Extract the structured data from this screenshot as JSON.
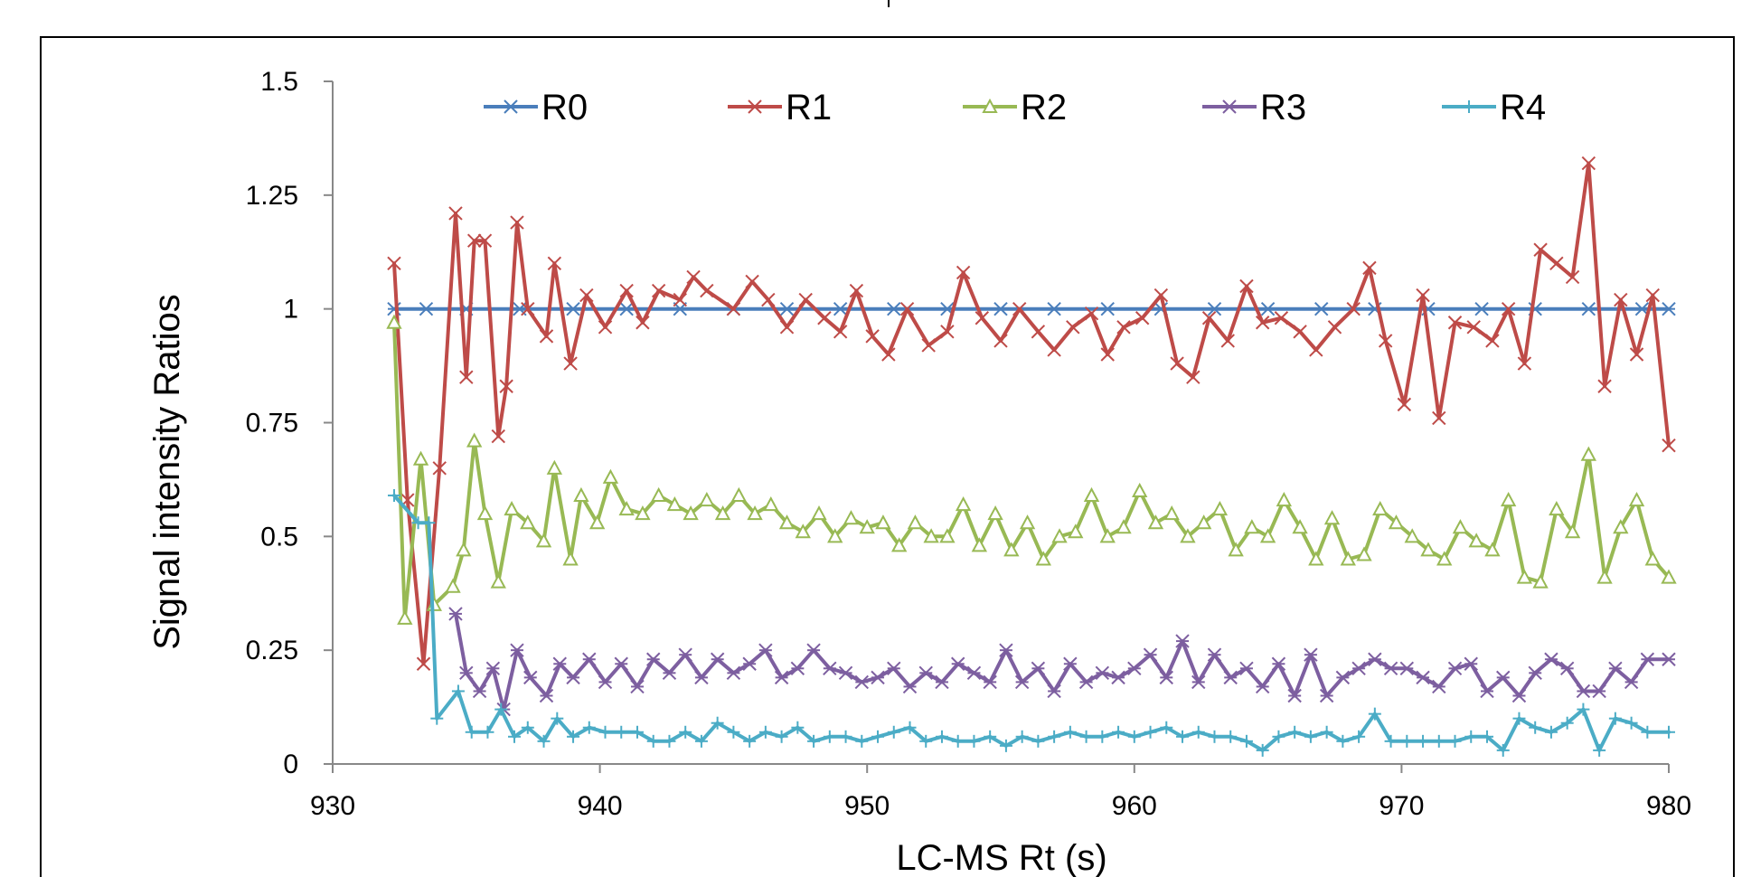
{
  "chart_data": {
    "type": "line",
    "title": "",
    "xlabel": "LC-MS Rt (s)",
    "ylabel": "Signal intensity Ratios",
    "xlim": [
      930,
      980
    ],
    "ylim": [
      0,
      1.5
    ],
    "x_ticks": [
      "930",
      "940",
      "950",
      "960",
      "970",
      "980"
    ],
    "y_ticks": [
      "0",
      "0.25",
      "0.5",
      "0.75",
      "1",
      "1.25",
      "1.5"
    ],
    "grid": false,
    "legend_position": "top",
    "series": [
      {
        "name": "R0",
        "color": "#4a7ebb",
        "marker": "asterisk",
        "x": [
          932.3,
          933.5,
          935.0,
          937.0,
          939.0,
          941.0,
          943.0,
          945.0,
          947.0,
          949.0,
          951.0,
          953.0,
          955.0,
          957.0,
          959.0,
          961.0,
          963.0,
          965.0,
          967.0,
          969.0,
          971.0,
          973.0,
          975.0,
          977.0,
          979.0,
          980.0
        ],
        "y": [
          1.0,
          1.0,
          1.0,
          1.0,
          1.0,
          1.0,
          1.0,
          1.0,
          1.0,
          1.0,
          1.0,
          1.0,
          1.0,
          1.0,
          1.0,
          1.0,
          1.0,
          1.0,
          1.0,
          1.0,
          1.0,
          1.0,
          1.0,
          1.0,
          1.0,
          1.0
        ]
      },
      {
        "name": "R1",
        "color": "#be4b48",
        "marker": "x",
        "x": [
          932.3,
          932.8,
          933.4,
          934.0,
          934.6,
          935.0,
          935.3,
          935.7,
          936.2,
          936.5,
          936.9,
          937.3,
          938.0,
          938.3,
          938.9,
          939.5,
          940.2,
          941.0,
          941.6,
          942.2,
          943.0,
          943.5,
          944.0,
          945.0,
          945.7,
          946.3,
          947.0,
          947.7,
          948.4,
          949.0,
          949.6,
          950.2,
          950.8,
          951.5,
          952.3,
          953.0,
          953.6,
          954.3,
          955.0,
          955.7,
          956.4,
          957.0,
          957.7,
          958.4,
          959.0,
          959.6,
          960.3,
          961.0,
          961.6,
          962.2,
          962.8,
          963.5,
          964.2,
          964.8,
          965.5,
          966.2,
          966.8,
          967.5,
          968.2,
          968.8,
          969.4,
          970.1,
          970.8,
          971.4,
          972.0,
          972.7,
          973.4,
          974.0,
          974.6,
          975.2,
          975.8,
          976.4,
          977.0,
          977.6,
          978.2,
          978.8,
          979.4,
          980.0
        ],
        "y": [
          1.1,
          0.58,
          0.22,
          0.65,
          1.21,
          0.85,
          1.15,
          1.15,
          0.72,
          0.83,
          1.19,
          1.0,
          0.94,
          1.1,
          0.88,
          1.03,
          0.96,
          1.04,
          0.97,
          1.04,
          1.02,
          1.07,
          1.04,
          1.0,
          1.06,
          1.02,
          0.96,
          1.02,
          0.98,
          0.95,
          1.04,
          0.94,
          0.9,
          1.0,
          0.92,
          0.95,
          1.08,
          0.98,
          0.93,
          1.0,
          0.95,
          0.91,
          0.96,
          0.99,
          0.9,
          0.96,
          0.98,
          1.03,
          0.88,
          0.85,
          0.98,
          0.93,
          1.05,
          0.97,
          0.98,
          0.95,
          0.91,
          0.96,
          1.0,
          1.09,
          0.93,
          0.79,
          1.03,
          0.76,
          0.97,
          0.96,
          0.93,
          1.0,
          0.88,
          1.13,
          1.1,
          1.07,
          1.32,
          0.83,
          1.02,
          0.9,
          1.03,
          0.7
        ]
      },
      {
        "name": "R2",
        "color": "#98b954",
        "marker": "triangle",
        "x": [
          932.3,
          932.7,
          933.3,
          933.8,
          934.5,
          934.9,
          935.3,
          935.7,
          936.2,
          936.7,
          937.3,
          937.9,
          938.3,
          938.9,
          939.3,
          939.9,
          940.4,
          941.0,
          941.6,
          942.2,
          942.8,
          943.4,
          944.0,
          944.6,
          945.2,
          945.8,
          946.4,
          947.0,
          947.6,
          948.2,
          948.8,
          949.4,
          950.0,
          950.6,
          951.2,
          951.8,
          952.4,
          953.0,
          953.6,
          954.2,
          954.8,
          955.4,
          956.0,
          956.6,
          957.2,
          957.8,
          958.4,
          959.0,
          959.6,
          960.2,
          960.8,
          961.4,
          962.0,
          962.6,
          963.2,
          963.8,
          964.4,
          965.0,
          965.6,
          966.2,
          966.8,
          967.4,
          968.0,
          968.6,
          969.2,
          969.8,
          970.4,
          971.0,
          971.6,
          972.2,
          972.8,
          973.4,
          974.0,
          974.6,
          975.2,
          975.8,
          976.4,
          977.0,
          977.6,
          978.2,
          978.8,
          979.4,
          980.0
        ],
        "y": [
          0.97,
          0.32,
          0.67,
          0.35,
          0.39,
          0.47,
          0.71,
          0.55,
          0.4,
          0.56,
          0.53,
          0.49,
          0.65,
          0.45,
          0.59,
          0.53,
          0.63,
          0.56,
          0.55,
          0.59,
          0.57,
          0.55,
          0.58,
          0.55,
          0.59,
          0.55,
          0.57,
          0.53,
          0.51,
          0.55,
          0.5,
          0.54,
          0.52,
          0.53,
          0.48,
          0.53,
          0.5,
          0.5,
          0.57,
          0.48,
          0.55,
          0.47,
          0.53,
          0.45,
          0.5,
          0.51,
          0.59,
          0.5,
          0.52,
          0.6,
          0.53,
          0.55,
          0.5,
          0.53,
          0.56,
          0.47,
          0.52,
          0.5,
          0.58,
          0.52,
          0.45,
          0.54,
          0.45,
          0.46,
          0.56,
          0.53,
          0.5,
          0.47,
          0.45,
          0.52,
          0.49,
          0.47,
          0.58,
          0.41,
          0.4,
          0.56,
          0.51,
          0.68,
          0.41,
          0.52,
          0.58,
          0.45,
          0.41
        ]
      },
      {
        "name": "R3",
        "color": "#7d5fa0",
        "marker": "asterisk",
        "x": [
          934.6,
          935.0,
          935.5,
          936.0,
          936.4,
          936.9,
          937.4,
          938.0,
          938.5,
          939.0,
          939.6,
          940.2,
          940.8,
          941.4,
          942.0,
          942.6,
          943.2,
          943.8,
          944.4,
          945.0,
          945.6,
          946.2,
          946.8,
          947.4,
          948.0,
          948.6,
          949.2,
          949.8,
          950.4,
          951.0,
          951.6,
          952.2,
          952.8,
          953.4,
          954.0,
          954.6,
          955.2,
          955.8,
          956.4,
          957.0,
          957.6,
          958.2,
          958.8,
          959.4,
          960.0,
          960.6,
          961.2,
          961.8,
          962.4,
          963.0,
          963.6,
          964.2,
          964.8,
          965.4,
          966.0,
          966.6,
          967.2,
          967.8,
          968.4,
          969.0,
          969.6,
          970.2,
          970.8,
          971.4,
          972.0,
          972.6,
          973.2,
          973.8,
          974.4,
          975.0,
          975.6,
          976.2,
          976.8,
          977.4,
          978.0,
          978.6,
          979.2,
          980.0
        ],
        "y": [
          0.33,
          0.2,
          0.16,
          0.21,
          0.12,
          0.25,
          0.19,
          0.15,
          0.22,
          0.19,
          0.23,
          0.18,
          0.22,
          0.17,
          0.23,
          0.2,
          0.24,
          0.19,
          0.23,
          0.2,
          0.22,
          0.25,
          0.19,
          0.21,
          0.25,
          0.21,
          0.2,
          0.18,
          0.19,
          0.21,
          0.17,
          0.2,
          0.18,
          0.22,
          0.2,
          0.18,
          0.25,
          0.18,
          0.21,
          0.16,
          0.22,
          0.18,
          0.2,
          0.19,
          0.21,
          0.24,
          0.19,
          0.27,
          0.18,
          0.24,
          0.19,
          0.21,
          0.17,
          0.22,
          0.15,
          0.24,
          0.15,
          0.19,
          0.21,
          0.23,
          0.21,
          0.21,
          0.19,
          0.17,
          0.21,
          0.22,
          0.16,
          0.19,
          0.15,
          0.2,
          0.23,
          0.21,
          0.16,
          0.16,
          0.21,
          0.18,
          0.23,
          0.23
        ]
      },
      {
        "name": "R4",
        "color": "#4bacc6",
        "marker": "plus",
        "x": [
          932.3,
          933.2,
          933.6,
          933.9,
          934.7,
          935.2,
          935.8,
          936.3,
          936.8,
          937.3,
          937.9,
          938.4,
          939.0,
          939.6,
          940.2,
          940.8,
          941.4,
          942.0,
          942.6,
          943.2,
          943.8,
          944.4,
          945.0,
          945.6,
          946.2,
          946.8,
          947.4,
          948.0,
          948.6,
          949.2,
          949.8,
          950.4,
          951.0,
          951.6,
          952.2,
          952.8,
          953.4,
          954.0,
          954.6,
          955.2,
          955.8,
          956.4,
          957.0,
          957.6,
          958.2,
          958.8,
          959.4,
          960.0,
          960.6,
          961.2,
          961.8,
          962.4,
          963.0,
          963.6,
          964.2,
          964.8,
          965.4,
          966.0,
          966.6,
          967.2,
          967.8,
          968.4,
          969.0,
          969.6,
          970.2,
          970.8,
          971.4,
          972.0,
          972.6,
          973.2,
          973.8,
          974.4,
          975.0,
          975.6,
          976.2,
          976.8,
          977.4,
          978.0,
          978.6,
          979.2,
          980.0
        ],
        "y": [
          0.59,
          0.53,
          0.53,
          0.1,
          0.16,
          0.07,
          0.07,
          0.12,
          0.06,
          0.08,
          0.05,
          0.1,
          0.06,
          0.08,
          0.07,
          0.07,
          0.07,
          0.05,
          0.05,
          0.07,
          0.05,
          0.09,
          0.07,
          0.05,
          0.07,
          0.06,
          0.08,
          0.05,
          0.06,
          0.06,
          0.05,
          0.06,
          0.07,
          0.08,
          0.05,
          0.06,
          0.05,
          0.05,
          0.06,
          0.04,
          0.06,
          0.05,
          0.06,
          0.07,
          0.06,
          0.06,
          0.07,
          0.06,
          0.07,
          0.08,
          0.06,
          0.07,
          0.06,
          0.06,
          0.05,
          0.03,
          0.06,
          0.07,
          0.06,
          0.07,
          0.05,
          0.06,
          0.11,
          0.05,
          0.05,
          0.05,
          0.05,
          0.05,
          0.06,
          0.06,
          0.03,
          0.1,
          0.08,
          0.07,
          0.09,
          0.12,
          0.03,
          0.1,
          0.09,
          0.07,
          0.07
        ]
      }
    ]
  }
}
